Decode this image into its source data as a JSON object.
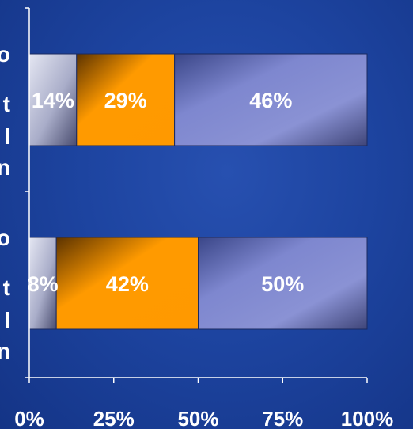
{
  "chart_data": {
    "type": "bar",
    "orientation": "horizontal",
    "stacked": true,
    "categories": [
      "o t l n",
      "o t l n"
    ],
    "series": [
      {
        "values": [
          14,
          8
        ],
        "labels": [
          "14%",
          "8%"
        ],
        "color": "#c9cbe0"
      },
      {
        "values": [
          29,
          42
        ],
        "labels": [
          "29%",
          "42%"
        ],
        "color": "#ff9900"
      },
      {
        "values": [
          46,
          50
        ],
        "labels": [
          "46%",
          "50%"
        ],
        "color": "#8a92d4"
      }
    ],
    "xlim": [
      0,
      100
    ],
    "xticks": [
      {
        "value": 0,
        "label": "0%"
      },
      {
        "value": 25,
        "label": "25%"
      },
      {
        "value": 50,
        "label": "50%"
      },
      {
        "value": 75,
        "label": "75%"
      },
      {
        "value": 100,
        "label": "100%"
      }
    ],
    "grid": false,
    "legend": "none"
  }
}
